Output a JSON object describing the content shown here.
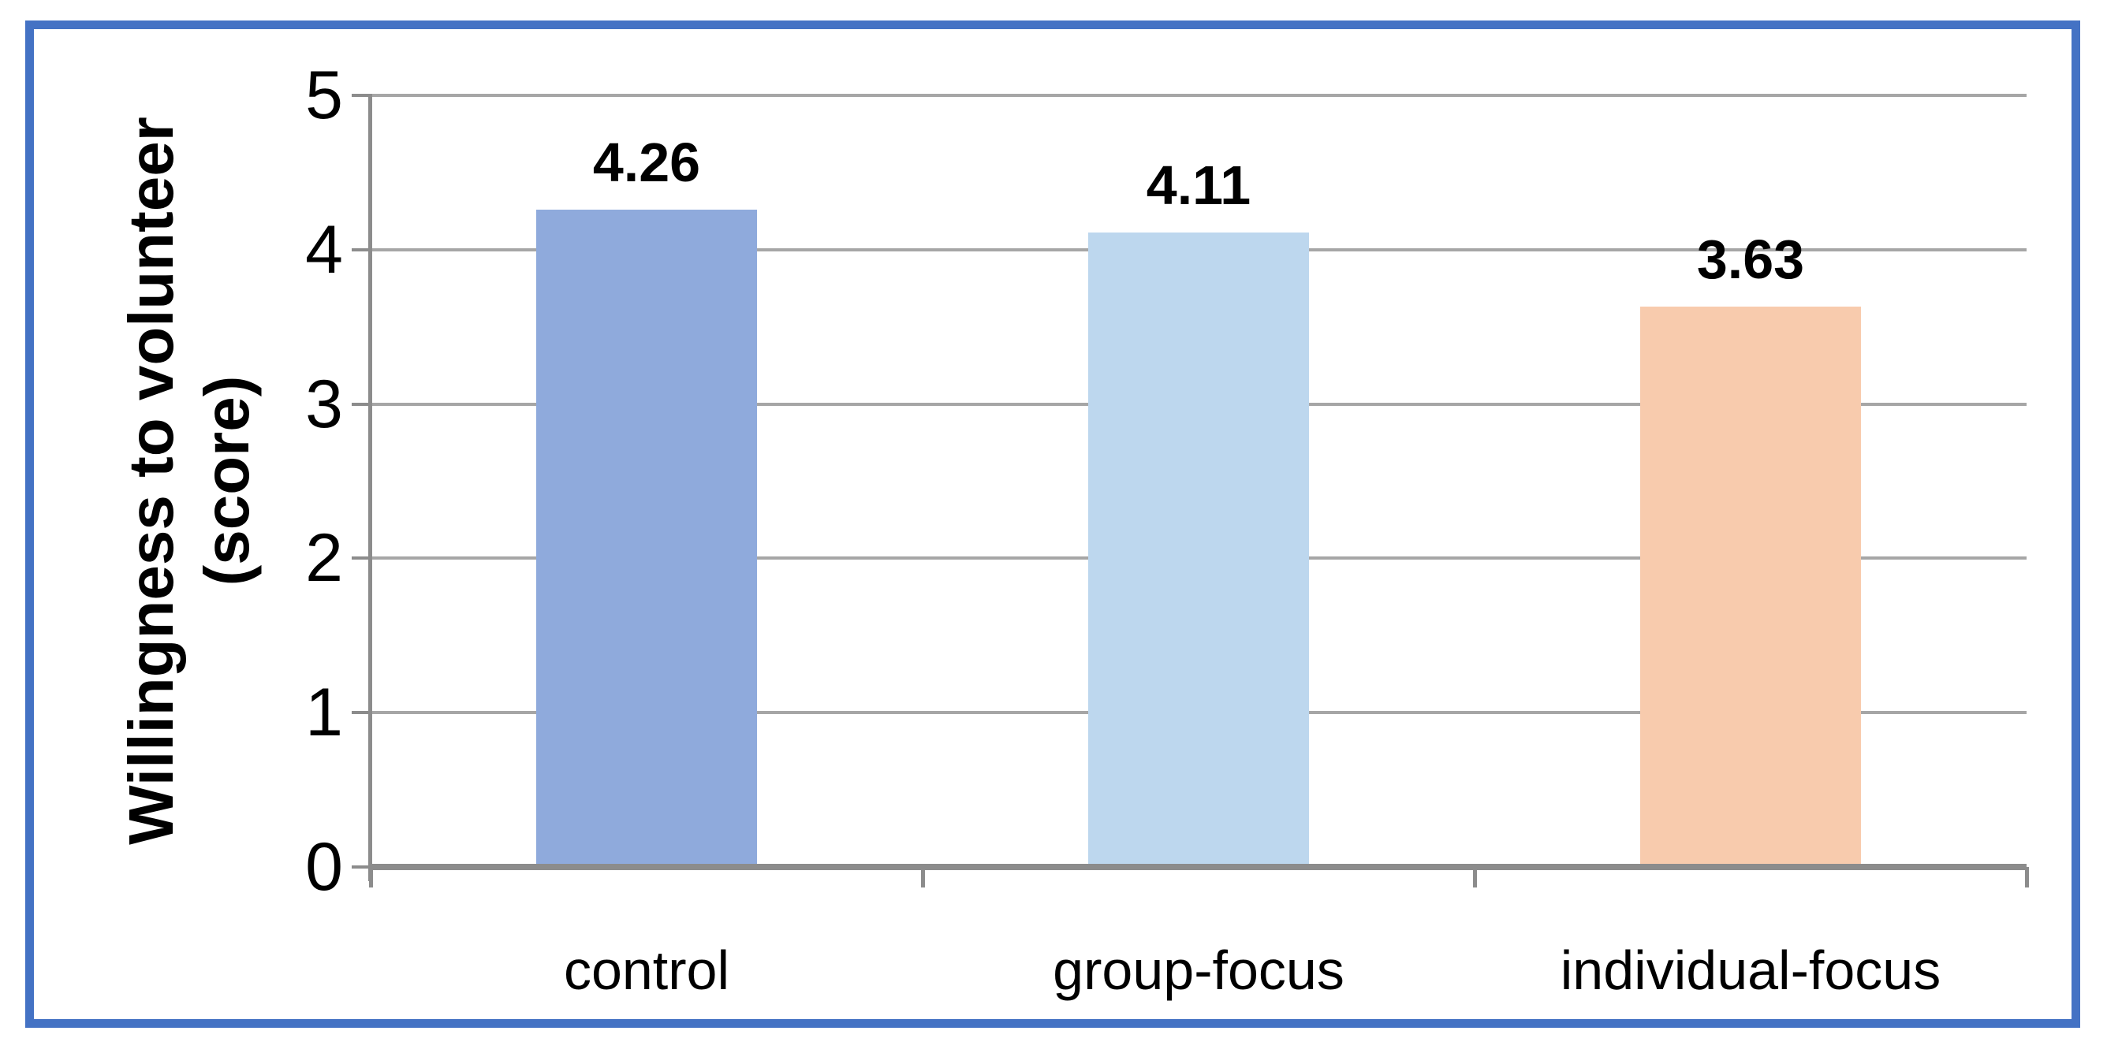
{
  "chart_data": {
    "type": "bar",
    "title": "",
    "categories": [
      "control",
      "group-focus",
      "individual-focus"
    ],
    "values": [
      4.26,
      4.11,
      3.63
    ],
    "data_labels": [
      "4.26",
      "4.11",
      "3.63"
    ],
    "xlabel": "",
    "ylabel": "Willingness to volunteer (score)",
    "ylabel_lines": [
      "Willingness to volunteer",
      "(score)"
    ],
    "ylim": [
      0,
      5
    ],
    "yticks": [
      0,
      1,
      2,
      3,
      4,
      5
    ],
    "grid": true,
    "legend_position": "none"
  },
  "style": {
    "bar_colors": [
      "#8FAADC",
      "#BDD7EE",
      "#F8CBAD"
    ],
    "frame_border_color": "#4472C4",
    "gridline_color": "#A6A6A6",
    "axis_line_color": "#8C8C8C",
    "text_color": "#000000",
    "background_color": "#FFFFFF"
  }
}
